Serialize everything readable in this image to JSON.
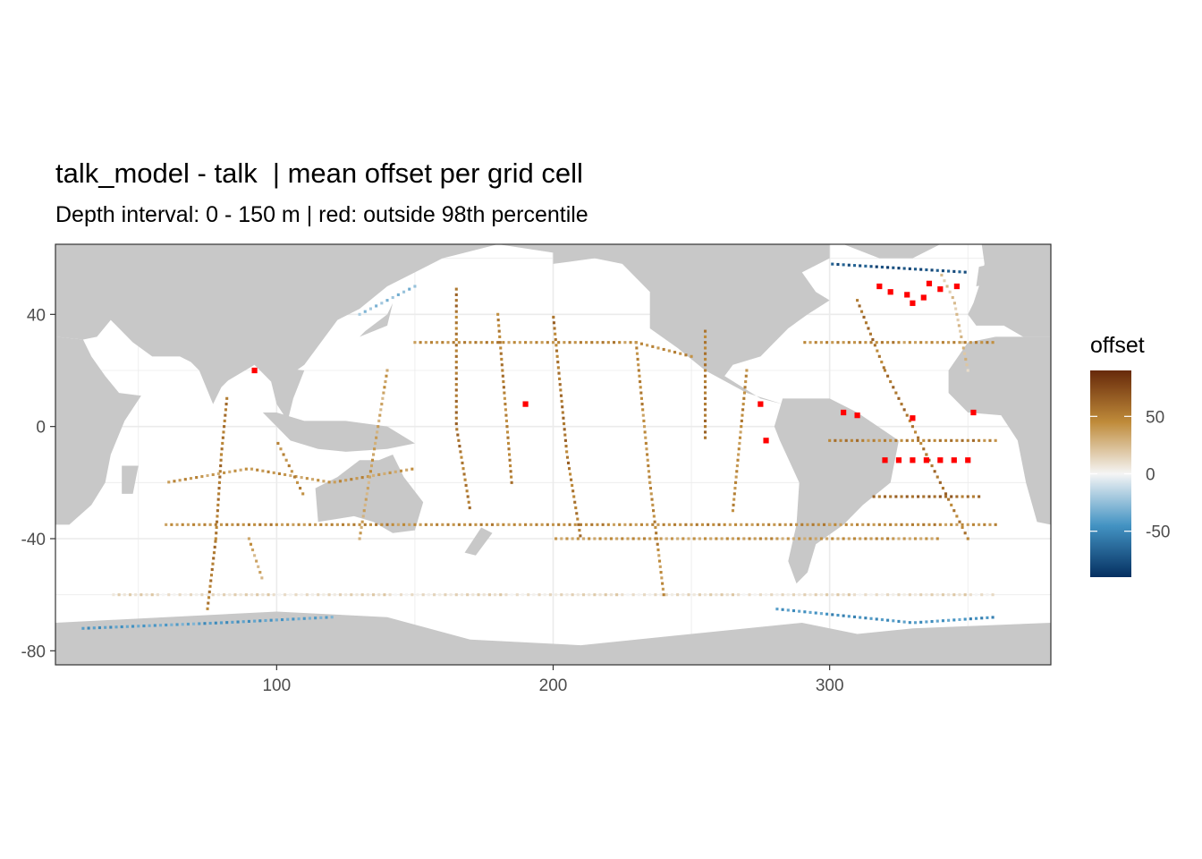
{
  "chart_data": {
    "type": "heatmap",
    "title": "talk_model - talk  | mean offset per grid cell",
    "subtitle": "Depth interval: 0 - 150 m | red: outside 98th percentile",
    "xlim": [
      20,
      380
    ],
    "ylim": [
      -85,
      65
    ],
    "x_ticks": [
      100,
      200,
      300
    ],
    "x_tick_labels": [
      "100",
      "200",
      "300"
    ],
    "y_ticks": [
      40,
      0,
      -40,
      -80
    ],
    "y_tick_labels": [
      "40",
      "0",
      "-40",
      "-80"
    ],
    "grid": true,
    "legend": {
      "title": "offset",
      "placement": "right",
      "range": [
        -90,
        90
      ],
      "ticks": [
        50,
        0,
        -50
      ],
      "tick_labels": [
        "50",
        "0",
        "-50"
      ],
      "low_color": "#053061",
      "mid_color": "#f5f5f5",
      "high_color": "#67290a"
    },
    "outlier_color": "#ff0000",
    "land_color": "#c8c8c8",
    "ocean_color": "#ffffff",
    "tracks": [
      {
        "points": [
          [
            60,
            -35
          ],
          [
            180,
            -35
          ],
          [
            300,
            -35
          ],
          [
            360,
            -35
          ]
        ],
        "value": 45
      },
      {
        "points": [
          [
            40,
            -60
          ],
          [
            360,
            -60
          ]
        ],
        "value": 10
      },
      {
        "points": [
          [
            75,
            -65
          ],
          [
            78,
            -40
          ],
          [
            80,
            -10
          ],
          [
            82,
            10
          ]
        ],
        "value": 55
      },
      {
        "points": [
          [
            60,
            -20
          ],
          [
            90,
            -15
          ],
          [
            120,
            -20
          ],
          [
            150,
            -15
          ]
        ],
        "value": 40
      },
      {
        "points": [
          [
            150,
            30
          ],
          [
            230,
            30
          ],
          [
            250,
            25
          ]
        ],
        "value": 45
      },
      {
        "points": [
          [
            165,
            50
          ],
          [
            165,
            0
          ],
          [
            170,
            -30
          ]
        ],
        "value": 55
      },
      {
        "points": [
          [
            180,
            40
          ],
          [
            185,
            -20
          ]
        ],
        "value": 50
      },
      {
        "points": [
          [
            200,
            40
          ],
          [
            205,
            -10
          ],
          [
            210,
            -40
          ]
        ],
        "value": 55
      },
      {
        "points": [
          [
            230,
            30
          ],
          [
            235,
            -20
          ],
          [
            240,
            -60
          ]
        ],
        "value": 45
      },
      {
        "points": [
          [
            255,
            35
          ],
          [
            255,
            -5
          ]
        ],
        "value": 55
      },
      {
        "points": [
          [
            270,
            20
          ],
          [
            265,
            -30
          ]
        ],
        "value": 45
      },
      {
        "points": [
          [
            200,
            -40
          ],
          [
            340,
            -40
          ]
        ],
        "value": 40
      },
      {
        "points": [
          [
            310,
            45
          ],
          [
            320,
            20
          ],
          [
            335,
            -10
          ],
          [
            350,
            -40
          ]
        ],
        "value": 55
      },
      {
        "points": [
          [
            290,
            30
          ],
          [
            360,
            30
          ]
        ],
        "value": 45
      },
      {
        "points": [
          [
            300,
            -5
          ],
          [
            360,
            -5
          ]
        ],
        "value": 50
      },
      {
        "points": [
          [
            315,
            -25
          ],
          [
            355,
            -25
          ]
        ],
        "value": 60
      },
      {
        "points": [
          [
            140,
            20
          ],
          [
            135,
            -10
          ],
          [
            130,
            -40
          ]
        ],
        "value": 35
      },
      {
        "points": [
          [
            100,
            -5
          ],
          [
            110,
            -25
          ]
        ],
        "value": 45
      },
      {
        "points": [
          [
            90,
            -40
          ],
          [
            95,
            -55
          ]
        ],
        "value": 35
      },
      {
        "points": [
          [
            340,
            55
          ],
          [
            345,
            45
          ],
          [
            350,
            20
          ]
        ],
        "value": 20
      },
      {
        "points": [
          [
            30,
            -72
          ],
          [
            80,
            -70
          ],
          [
            120,
            -68
          ]
        ],
        "value": -40
      },
      {
        "points": [
          [
            280,
            -65
          ],
          [
            330,
            -70
          ],
          [
            360,
            -68
          ]
        ],
        "value": -45
      },
      {
        "points": [
          [
            150,
            50
          ],
          [
            130,
            40
          ]
        ],
        "value": -25
      },
      {
        "points": [
          [
            300,
            58
          ],
          [
            350,
            55
          ]
        ],
        "value": -75
      }
    ],
    "outliers": [
      [
        322,
        48
      ],
      [
        328,
        47
      ],
      [
        334,
        46
      ],
      [
        340,
        49
      ],
      [
        346,
        50
      ],
      [
        330,
        44
      ],
      [
        318,
        50
      ],
      [
        336,
        51
      ],
      [
        320,
        -12
      ],
      [
        325,
        -12
      ],
      [
        330,
        -12
      ],
      [
        335,
        -12
      ],
      [
        340,
        -12
      ],
      [
        345,
        -12
      ],
      [
        350,
        -12
      ],
      [
        305,
        5
      ],
      [
        310,
        4
      ],
      [
        275,
        8
      ],
      [
        277,
        -5
      ],
      [
        190,
        8
      ],
      [
        92,
        20
      ],
      [
        330,
        3
      ],
      [
        352,
        5
      ]
    ]
  }
}
